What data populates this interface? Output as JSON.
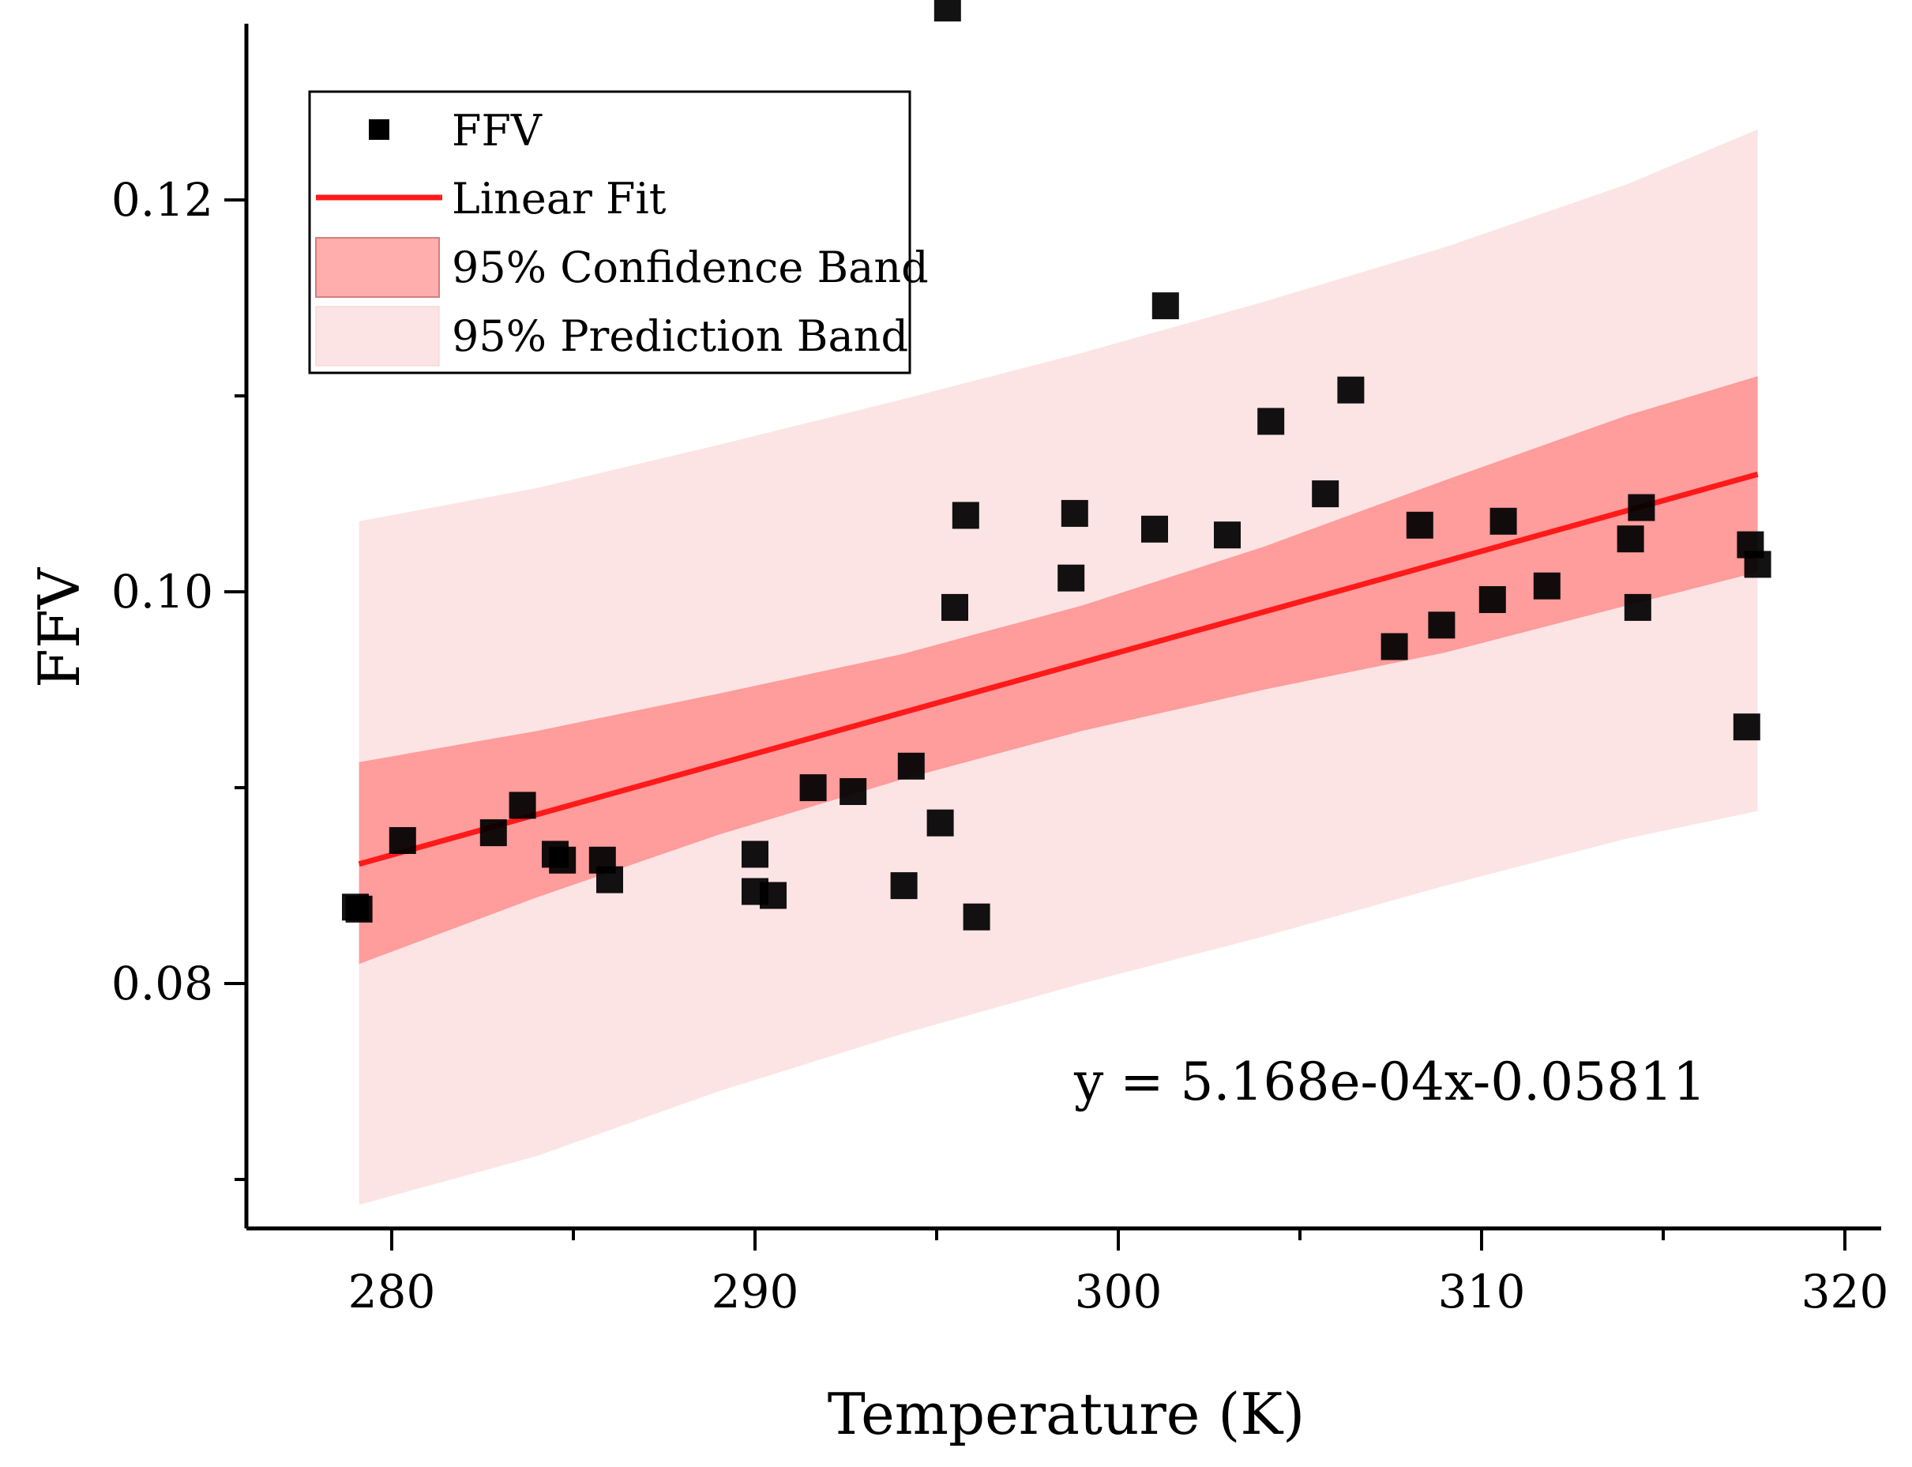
{
  "chart_data": {
    "type": "scatter",
    "xlabel": "Temperature (K)",
    "ylabel": "FFV",
    "xlim": [
      276,
      321
    ],
    "ylim": [
      0.0675,
      0.129
    ],
    "x_ticks": [
      280,
      290,
      300,
      310,
      320
    ],
    "x_tick_labels": [
      "280",
      "290",
      "300",
      "310",
      "320"
    ],
    "x_minor_ticks": [
      285,
      295,
      305,
      315
    ],
    "y_ticks": [
      0.08,
      0.1,
      0.12
    ],
    "y_tick_labels": [
      "0.08",
      "0.10",
      "0.12"
    ],
    "y_minor_ticks": [
      0.07,
      0.09,
      0.11
    ],
    "grid": false,
    "legend_position": "top-left",
    "legend": [
      {
        "key": "points",
        "label": "FFV"
      },
      {
        "key": "fit",
        "label": "Linear Fit"
      },
      {
        "key": "confidence",
        "label": "95% Confidence Band"
      },
      {
        "key": "prediction",
        "label": "95% Prediction Band"
      }
    ],
    "equation": "y = 5.168e-04x-0.05811",
    "colors": {
      "points": "#000000",
      "fit_line": "#ff1a1a",
      "confidence_band": "#ff9c9c",
      "prediction_band": "#fde4e4",
      "axis": "#000000"
    },
    "series": [
      {
        "name": "FFV",
        "type": "scatter",
        "points": [
          [
            279.0,
            0.0839
          ],
          [
            279.1,
            0.0838
          ],
          [
            280.3,
            0.0873
          ],
          [
            282.8,
            0.0877
          ],
          [
            283.6,
            0.0891
          ],
          [
            284.5,
            0.0866
          ],
          [
            284.7,
            0.0863
          ],
          [
            285.8,
            0.0863
          ],
          [
            286.0,
            0.0853
          ],
          [
            290.0,
            0.0866
          ],
          [
            290.0,
            0.0847
          ],
          [
            290.5,
            0.0845
          ],
          [
            291.6,
            0.09
          ],
          [
            292.7,
            0.0898
          ],
          [
            294.1,
            0.085
          ],
          [
            294.3,
            0.0911
          ],
          [
            295.1,
            0.0882
          ],
          [
            295.3,
            0.1298
          ],
          [
            295.5,
            0.0992
          ],
          [
            295.8,
            0.1039
          ],
          [
            296.1,
            0.0834
          ],
          [
            298.7,
            0.1007
          ],
          [
            298.8,
            0.104
          ],
          [
            301.0,
            0.1032
          ],
          [
            301.3,
            0.1146
          ],
          [
            303.0,
            0.1029
          ],
          [
            304.2,
            0.1087
          ],
          [
            305.7,
            0.105
          ],
          [
            306.4,
            0.1103
          ],
          [
            307.6,
            0.0972
          ],
          [
            308.3,
            0.1034
          ],
          [
            308.9,
            0.0983
          ],
          [
            310.3,
            0.0996
          ],
          [
            310.6,
            0.1036
          ],
          [
            311.8,
            0.1003
          ],
          [
            314.1,
            0.1027
          ],
          [
            314.3,
            0.0992
          ],
          [
            314.4,
            0.1043
          ],
          [
            317.4,
            0.1024
          ],
          [
            317.6,
            0.1014
          ],
          [
            317.3,
            0.0931
          ]
        ]
      },
      {
        "name": "Linear Fit",
        "type": "line",
        "x": [
          279.1,
          317.6
        ],
        "y": [
          0.0861,
          0.106
        ]
      },
      {
        "name": "95% Confidence Band",
        "type": "band",
        "x": [
          279.1,
          284,
          289,
          294,
          299,
          304,
          309,
          314,
          317.6
        ],
        "upper": [
          0.0913,
          0.0929,
          0.0948,
          0.0968,
          0.0993,
          0.1023,
          0.1057,
          0.109,
          0.111
        ],
        "lower": [
          0.081,
          0.0844,
          0.0876,
          0.0904,
          0.0929,
          0.095,
          0.0969,
          0.0993,
          0.101
        ]
      },
      {
        "name": "95% Prediction Band",
        "type": "band",
        "x": [
          279.1,
          284,
          289,
          294,
          299,
          304,
          309,
          314,
          317.6
        ],
        "upper": [
          0.1036,
          0.1053,
          0.1075,
          0.1098,
          0.1122,
          0.1148,
          0.1176,
          0.1208,
          0.1236
        ],
        "lower": [
          0.0687,
          0.0712,
          0.0745,
          0.0774,
          0.08,
          0.0824,
          0.085,
          0.0874,
          0.0888
        ]
      }
    ]
  }
}
